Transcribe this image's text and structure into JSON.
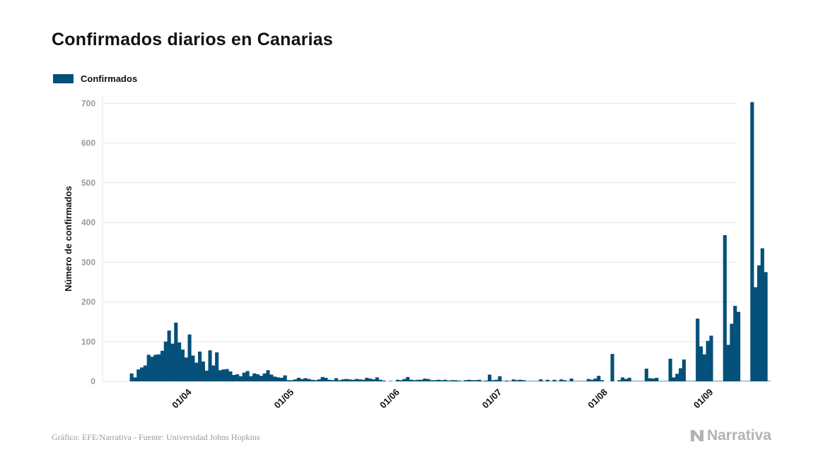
{
  "title": "Confirmados diarios en Canarias",
  "legend": {
    "label": "Confirmados"
  },
  "colors": {
    "bar": "#04507a",
    "grid": "#e6e6e6",
    "tick": "#9a9a9a"
  },
  "footer": {
    "source": "Gráfico: EFE/Narrativa - Fuente: Universidad Johns Hopkins",
    "brand": "Narrativa",
    "brand_icon": "narrativa-n-icon"
  },
  "chart_data": {
    "type": "bar",
    "title": "Confirmados diarios en Canarias",
    "xlabel": "",
    "ylabel": "Número de confirmados",
    "ylim": [
      0,
      720
    ],
    "yticks": [
      0,
      100,
      200,
      300,
      400,
      500,
      600,
      700
    ],
    "xlim": [
      "2020-03-07",
      "2020-09-09"
    ],
    "xticks": [
      {
        "date": "2020-04-01",
        "label": "01/04"
      },
      {
        "date": "2020-05-01",
        "label": "01/05"
      },
      {
        "date": "2020-06-01",
        "label": "01/06"
      },
      {
        "date": "2020-07-01",
        "label": "01/07"
      },
      {
        "date": "2020-08-01",
        "label": "01/08"
      },
      {
        "date": "2020-09-01",
        "label": "01/09"
      }
    ],
    "grid": true,
    "legend_position": "top-left",
    "series": [
      {
        "name": "Confirmados",
        "start_date": "2020-03-15",
        "values": [
          20,
          10,
          30,
          35,
          40,
          67,
          62,
          67,
          68,
          77,
          100,
          128,
          95,
          148,
          98,
          80,
          60,
          118,
          65,
          47,
          75,
          50,
          27,
          78,
          40,
          73,
          28,
          30,
          31,
          25,
          16,
          18,
          13,
          22,
          26,
          13,
          20,
          18,
          14,
          20,
          28,
          17,
          12,
          10,
          9,
          15,
          3,
          3,
          5,
          9,
          6,
          8,
          6,
          4,
          3,
          5,
          11,
          9,
          4,
          3,
          8,
          3,
          5,
          6,
          5,
          4,
          6,
          5,
          4,
          9,
          7,
          5,
          10,
          4,
          2,
          0,
          1,
          0,
          4,
          3,
          6,
          11,
          4,
          3,
          4,
          4,
          7,
          6,
          3,
          3,
          4,
          3,
          4,
          2,
          3,
          3,
          2,
          1,
          3,
          4,
          3,
          3,
          4,
          1,
          2,
          17,
          3,
          4,
          13,
          1,
          2,
          1,
          5,
          3,
          4,
          3,
          1,
          1,
          1,
          1,
          5,
          1,
          4,
          1,
          4,
          1,
          5,
          3,
          1,
          7,
          1,
          1,
          1,
          1,
          6,
          4,
          7,
          14,
          3,
          0,
          0,
          69,
          0,
          3,
          10,
          6,
          9,
          1,
          1,
          1,
          1,
          32,
          8,
          7,
          9,
          1,
          1,
          1,
          57,
          10,
          19,
          33,
          55,
          1,
          1,
          1,
          158,
          88,
          68,
          102,
          115,
          1,
          1,
          1,
          368,
          92,
          145,
          190,
          175,
          1,
          1,
          1,
          703,
          237,
          292,
          335,
          275,
          1
        ]
      }
    ]
  }
}
